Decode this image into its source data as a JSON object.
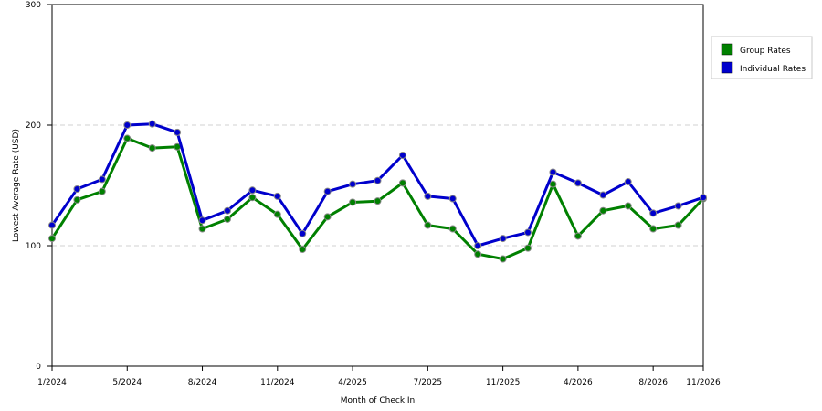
{
  "chart_data": {
    "type": "line",
    "xlabel": "Month of Check In",
    "ylabel": "Lowest Average Rate (USD)",
    "ylim": [
      0,
      300
    ],
    "yticks": [
      0,
      100,
      200,
      300
    ],
    "grid": "horizontal dashed",
    "legend_placement": "right",
    "x_tick_labels": [
      "1/2024",
      "5/2024",
      "8/2024",
      "11/2024",
      "4/2025",
      "7/2025",
      "11/2025",
      "4/2026",
      "8/2026",
      "11/2026"
    ],
    "x_tick_index": [
      0,
      3,
      6,
      9,
      12,
      15,
      18,
      21,
      24,
      26
    ],
    "series": [
      {
        "name": "Group Rates",
        "color": "#008000",
        "values": [
          106,
          138,
          145,
          189,
          181,
          182,
          114,
          122,
          140,
          126,
          97,
          124,
          136,
          137,
          152,
          117,
          114,
          93,
          89,
          98,
          151,
          108,
          129,
          133,
          114,
          117,
          139
        ]
      },
      {
        "name": "Individual Rates",
        "color": "#0000cc",
        "values": [
          117,
          147,
          155,
          200,
          201,
          194,
          121,
          129,
          146,
          141,
          110,
          145,
          151,
          154,
          175,
          141,
          139,
          100,
          106,
          111,
          161,
          152,
          142,
          153,
          127,
          133,
          140
        ]
      }
    ]
  }
}
